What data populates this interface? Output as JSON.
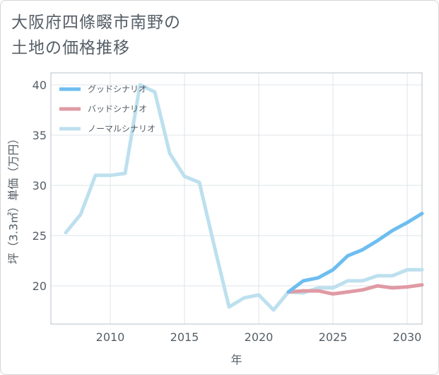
{
  "title": {
    "line1": "大阪府四條畷市南野の",
    "line2": "土地の価格推移"
  },
  "chart_data": {
    "type": "line",
    "xlabel": "年",
    "ylabel": "坪（3.3㎡）単価（万円）",
    "xlim": [
      2006,
      2031
    ],
    "ylim": [
      16.2,
      41.2
    ],
    "xticks": [
      2010,
      2015,
      2020,
      2025,
      2030
    ],
    "yticks": [
      20,
      25,
      30,
      35,
      40
    ],
    "grid": true,
    "legend_position": "top-left",
    "series": [
      {
        "name": "グッドシナリオ",
        "color": "#6dbdf0",
        "x": [
          2022,
          2023,
          2024,
          2025,
          2026,
          2027,
          2028,
          2029,
          2030,
          2031
        ],
        "y": [
          19.4,
          20.5,
          20.8,
          21.6,
          23.0,
          23.6,
          24.5,
          25.5,
          26.3,
          27.2
        ]
      },
      {
        "name": "バッドシナリオ",
        "color": "#e09aa4",
        "x": [
          2022,
          2023,
          2024,
          2025,
          2026,
          2027,
          2028,
          2029,
          2030,
          2031
        ],
        "y": [
          19.4,
          19.5,
          19.5,
          19.2,
          19.4,
          19.6,
          20.0,
          19.8,
          19.9,
          20.1
        ]
      },
      {
        "name": "ノーマルシナリオ",
        "color": "#bde0ee",
        "x": [
          2007,
          2008,
          2009,
          2010,
          2011,
          2012,
          2013,
          2014,
          2015,
          2016,
          2017,
          2018,
          2019,
          2020,
          2021,
          2022,
          2023,
          2024,
          2025,
          2026,
          2027,
          2028,
          2029,
          2030,
          2031
        ],
        "y": [
          25.3,
          27.1,
          31.0,
          31.0,
          31.2,
          40.0,
          39.3,
          33.2,
          30.9,
          30.3,
          24.0,
          17.9,
          18.8,
          19.1,
          17.6,
          19.4,
          19.3,
          19.8,
          19.8,
          20.5,
          20.5,
          21.0,
          21.0,
          21.6,
          21.6
        ]
      }
    ]
  }
}
